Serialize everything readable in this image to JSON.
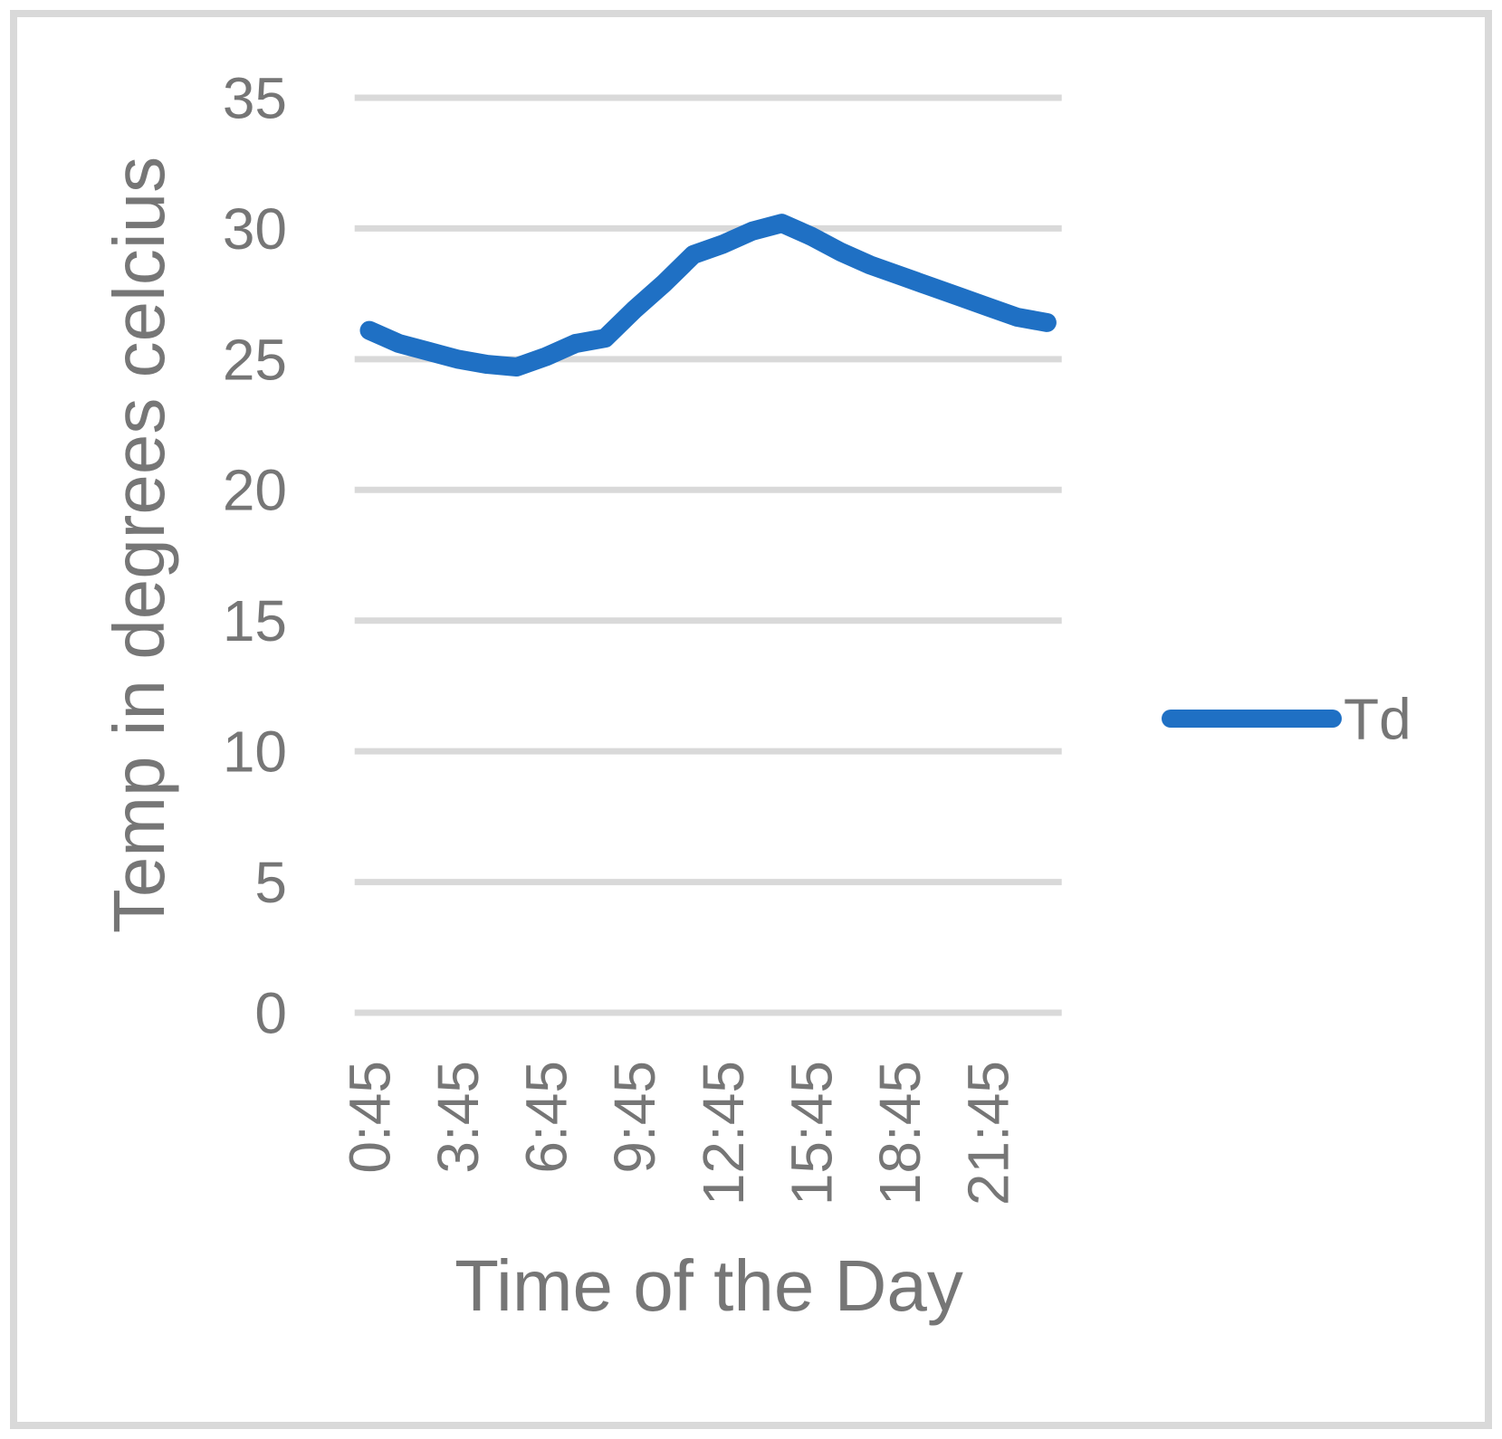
{
  "chart_data": {
    "type": "line",
    "title": "",
    "xlabel": "Time of the Day",
    "ylabel": "Temp in degrees celcius",
    "legend_position": "right-middle",
    "grid": "horizontal-only",
    "ylim": [
      0,
      35
    ],
    "y_ticks": [
      0,
      5,
      10,
      15,
      20,
      25,
      30,
      35
    ],
    "x": [
      "0:45",
      "1:45",
      "2:45",
      "3:45",
      "4:45",
      "5:45",
      "6:45",
      "7:45",
      "8:45",
      "9:45",
      "10:45",
      "11:45",
      "12:45",
      "13:45",
      "14:45",
      "15:45",
      "16:45",
      "17:45",
      "18:45",
      "19:45",
      "20:45",
      "21:45",
      "22:45",
      "23:45"
    ],
    "x_ticks_shown": [
      "0:45",
      "3:45",
      "6:45",
      "9:45",
      "12:45",
      "15:45",
      "18:45",
      "21:45"
    ],
    "series": [
      {
        "name": "Td",
        "color": "#1F70C4",
        "values": [
          26.1,
          25.6,
          25.3,
          25.0,
          24.8,
          24.7,
          25.1,
          25.6,
          25.8,
          26.9,
          27.9,
          29.0,
          29.4,
          29.9,
          30.2,
          29.7,
          29.1,
          28.6,
          28.2,
          27.8,
          27.4,
          27.0,
          26.6,
          26.4
        ]
      }
    ]
  },
  "legend": {
    "label": "Td"
  },
  "colors": {
    "line": "#1F70C4",
    "gridline": "#D9D9D9",
    "text": "#767676",
    "border": "#D9D9D9",
    "background": "#FFFFFF"
  }
}
